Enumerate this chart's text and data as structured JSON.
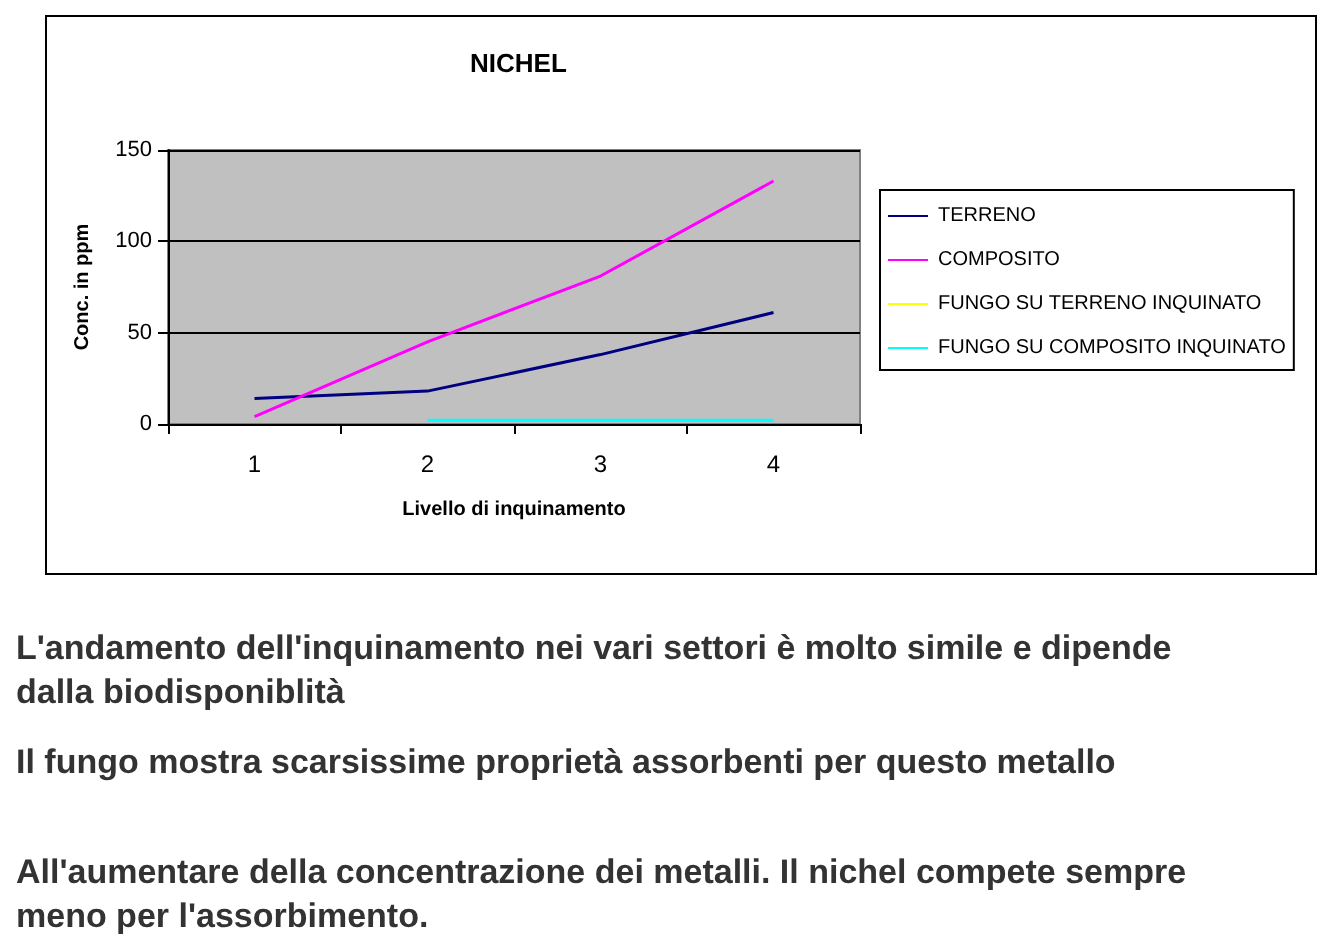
{
  "chart_data": {
    "type": "line",
    "title": "NICHEL",
    "xlabel": "Livello di inquinamento",
    "ylabel": "Conc. in ppm",
    "categories": [
      "1",
      "2",
      "3",
      "4"
    ],
    "series": [
      {
        "name": "TERRENO",
        "color": "#000080",
        "values": [
          14,
          18,
          38,
          61
        ]
      },
      {
        "name": "COMPOSITO",
        "color": "#ff00ff",
        "values": [
          4,
          45,
          81,
          133
        ]
      },
      {
        "name": "FUNGO SU TERRENO INQUINATO",
        "color": "#ffff00",
        "values": [
          null,
          null,
          null,
          null
        ]
      },
      {
        "name": "FUNGO SU COMPOSITO INQUINATO",
        "color": "#00ffff",
        "values": [
          null,
          2,
          2,
          2
        ]
      }
    ],
    "ylim": [
      0,
      150
    ],
    "yticks": [
      0,
      50,
      100,
      150
    ],
    "grid": "y",
    "legend": "right",
    "marker": "none",
    "line_style": "solid",
    "annotations": [
      "L'andamento dell'inquinamento nei vari settori è molto simile e dipende dalla biodisponiblità",
      "Il fungo mostra scarsissime proprietà assorbenti per questo metallo",
      "All'aumentare della concentrazione dei metalli. Il nichel compete sempre meno per l'assorbimento."
    ]
  }
}
